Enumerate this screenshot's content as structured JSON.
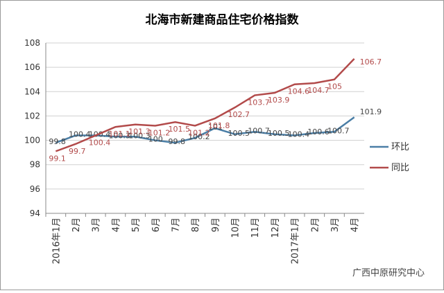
{
  "chart_data": {
    "type": "line",
    "title": "北海市新建商品住宅价格指数",
    "categories": [
      "2016年1月",
      "2月",
      "3月",
      "4月",
      "5月",
      "6月",
      "7月",
      "8月",
      "9月",
      "10月",
      "11月",
      "12月",
      "2017年1月",
      "2月",
      "3月",
      "4月"
    ],
    "series": [
      {
        "name": "环比",
        "color": "#4a7ea6",
        "values": [
          99.8,
          100.4,
          100.4,
          100.3,
          100.3,
          100,
          99.8,
          100.2,
          101,
          100.5,
          100.7,
          100.5,
          100.4,
          100.6,
          100.7,
          101.9
        ]
      },
      {
        "name": "同比",
        "color": "#b24a4a",
        "values": [
          99.1,
          99.7,
          100.4,
          101.1,
          101.3,
          101.2,
          101.5,
          101.2,
          101.8,
          102.7,
          103.7,
          103.9,
          104.6,
          104.7,
          105,
          106.7
        ]
      }
    ],
    "ylim": [
      94,
      108
    ],
    "yticks": [
      94,
      96,
      98,
      100,
      102,
      104,
      106,
      108
    ],
    "grid": true,
    "legend": "right",
    "watermark": "广西中原研究中心"
  }
}
